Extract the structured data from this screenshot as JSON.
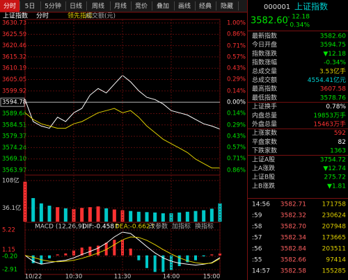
{
  "toolbar": {
    "tabs": [
      "分时",
      "5日",
      "5分钟",
      "日线",
      "周线",
      "月线",
      "竞价",
      "叠加",
      "画线",
      "经典",
      "隐藏"
    ],
    "active_index": 0
  },
  "chart_data": [
    {
      "type": "line",
      "title": "上证指数",
      "labels": [
        "分时",
        "领先指标",
        "成交额(元)"
      ],
      "x": [
        0,
        10,
        20,
        30,
        40,
        50,
        60,
        70,
        80,
        90,
        100,
        110,
        120,
        130,
        140,
        150,
        160,
        170,
        180,
        190,
        200,
        210,
        220,
        230,
        240
      ],
      "series": [
        {
          "color": "#ffffff",
          "values": [
            3596,
            3586,
            3584,
            3583,
            3588,
            3586,
            3590,
            3592,
            3598,
            3601,
            3599,
            3603,
            3607,
            3604,
            3600,
            3597,
            3596,
            3594,
            3591,
            3590,
            3589,
            3587,
            3585,
            3584,
            3582.6
          ]
        },
        {
          "color": "#e0d000",
          "values": [
            3590,
            3587,
            3585,
            3584,
            3583,
            3583,
            3585,
            3586,
            3588,
            3590,
            3591,
            3592,
            3590,
            3591,
            3588,
            3584,
            3581,
            3578,
            3576,
            3574,
            3572,
            3569,
            3567,
            3565,
            3565
          ]
        }
      ],
      "ylim": [
        3563.97,
        3630.73
      ],
      "yticks": [
        3630.73,
        3625.59,
        3620.46,
        3615.32,
        3610.19,
        3605.05,
        3599.92,
        3594.78,
        3589.64,
        3584.51,
        3579.37,
        3574.24,
        {
          "value": 3569.1,
          "label": "3569.10"
        },
        3563.97
      ],
      "y2lim": [
        -0.86,
        1.0
      ],
      "y2ticks": [
        {
          "value": 1.0,
          "label": "1.00%"
        },
        {
          "value": 0.86,
          "label": "0.86%"
        },
        {
          "value": 0.71,
          "label": "0.71%"
        },
        {
          "value": 0.57,
          "label": "0.57%"
        },
        {
          "value": 0.43,
          "label": "0.43%"
        },
        {
          "value": 0.29,
          "label": "0.29%"
        },
        {
          "value": 0.14,
          "label": "0.14%"
        },
        {
          "value": 0,
          "label": "0.00%"
        },
        {
          "value": -0.14,
          "label": "0.14%"
        },
        {
          "value": -0.29,
          "label": "0.29%"
        },
        {
          "value": -0.43,
          "label": "0.43%"
        },
        {
          "value": -0.57,
          "label": "0.57%"
        },
        {
          "value": -0.71,
          "label": "0.71%"
        },
        {
          "value": -0.86,
          "label": "0.86%"
        }
      ],
      "base": 3594.78,
      "xlim": [
        0,
        240
      ],
      "grid": true
    },
    {
      "type": "bar",
      "values": [
        105,
        62,
        48,
        42,
        38,
        35,
        33,
        36,
        38,
        40,
        35,
        32,
        30,
        28,
        26,
        25,
        24,
        22,
        22,
        24,
        26,
        28,
        30,
        34,
        48
      ],
      "ylim": [
        0,
        117
      ],
      "yticks": [
        {
          "value": 108,
          "label": "108亿"
        },
        {
          "value": 36.1,
          "label": "36.1亿"
        }
      ],
      "up_color": "#ff3232",
      "down_color": "#00c8c8"
    },
    {
      "type": "macd",
      "title": "MACD (12,26,9)",
      "items": [
        {
          "text": "DIF:-0.458↑",
          "color": "#ffffff"
        },
        {
          "text": "DEA:-0.662↑",
          "color": "#e0d000"
        }
      ],
      "buttons": [
        "改参数",
        "加指标",
        "换指标"
      ],
      "values": [
        0,
        -1.6,
        -1.8,
        -0.6,
        0.2,
        0.4,
        1.0,
        1.6,
        1.8,
        2.0,
        2.6,
        3.2,
        3.2,
        1.4,
        -1.0,
        -2.6,
        -3.4,
        -3.4,
        -3.0,
        -2.2,
        -1.4,
        -1.0,
        -0.2,
        0.2,
        0.4
      ],
      "series": [
        {
          "color": "#ffffff",
          "values": [
            0,
            -1.2,
            -1.8,
            -1.5,
            -1.2,
            -1.0,
            -0.5,
            0.2,
            0.8,
            1.5,
            2.5,
            3.8,
            4.8,
            4.5,
            3.2,
            1.8,
            0.5,
            -0.5,
            -1.2,
            -1.6,
            -1.8,
            -2.0,
            -1.8,
            -1.5,
            -0.458
          ]
        },
        {
          "color": "#e0d000",
          "values": [
            0,
            -0.4,
            -0.9,
            -1.2,
            -1.3,
            -1.2,
            -1.0,
            -0.6,
            -0.1,
            0.5,
            1.2,
            2.2,
            3.2,
            3.8,
            3.7,
            3.1,
            2.2,
            1.2,
            0.3,
            -0.5,
            -1.1,
            -1.5,
            -1.7,
            -1.6,
            -0.662
          ]
        }
      ],
      "ylim": [
        -3.77,
        5.65
      ],
      "yticks": [
        5.22,
        1.15,
        {
          "value": -0.2,
          "label": "-0.20"
        },
        -2.91
      ],
      "xlim": [
        0,
        240
      ],
      "xticks": [
        {
          "value": 0,
          "label": "10/22"
        },
        {
          "value": 60,
          "label": "10:30"
        },
        {
          "value": 120,
          "label": "11:30"
        },
        {
          "value": 180,
          "label": "14:00"
        },
        {
          "value": 240,
          "label": "15:00"
        }
      ]
    }
  ],
  "quote": {
    "code": "000001",
    "name": "上证指数",
    "price": "3582.60",
    "change": "- 12.18",
    "change_pct": "- 0.34%",
    "rows": [
      {
        "label": "最新指数",
        "value": "3582.60",
        "color": "#00e600"
      },
      {
        "label": "今日开盘",
        "value": "3594.75",
        "color": "#00e600"
      },
      {
        "label": "指数涨跌",
        "value": "▼12.18",
        "color": "#00e600"
      },
      {
        "label": "指数涨幅",
        "value": "-0.34%",
        "color": "#00e600"
      },
      {
        "label": "总成交量",
        "value": "3.53亿手",
        "color": "#e0d000"
      },
      {
        "label": "总成交额",
        "value": "4554.41亿元",
        "color": "#00d0d0"
      },
      {
        "label": "最高指数",
        "value": "3607.58",
        "color": "#ff3232"
      },
      {
        "label": "最低指数",
        "value": "3578.76",
        "color": "#00e600"
      },
      {
        "label": "上证换手",
        "value": "0.78%",
        "color": "#ffffff"
      },
      {
        "label": "内盘总量",
        "value": "19853万手",
        "color": "#00e600"
      },
      {
        "label": "外盘总量",
        "value": "15463万手",
        "color": "#ff3232"
      },
      {
        "label": "上涨家数",
        "value": "592",
        "color": "#ff3232"
      },
      {
        "label": "平盘家数",
        "value": "82",
        "color": "#ffffff"
      },
      {
        "label": "下跌家数",
        "value": "1363",
        "color": "#00e600"
      },
      {
        "label": "上证A股",
        "value": "3754.72",
        "color": "#00e600"
      },
      {
        "label": "上A涨跌",
        "value": "▼12.74",
        "color": "#00e600"
      },
      {
        "label": "上证B股",
        "value": "275.72",
        "color": "#00e600"
      },
      {
        "label": "上B涨跌",
        "value": "▼1.81",
        "color": "#00e600"
      }
    ],
    "trades": [
      [
        "14:56",
        "3582.71",
        "171758"
      ],
      [
        ":59",
        "3582.32",
        "230624"
      ],
      [
        ":58",
        "3582.70",
        "207948"
      ],
      [
        ":57",
        "3582.34",
        "173665"
      ],
      [
        ":56",
        "3582.84",
        "203511"
      ],
      [
        ":55",
        "3582.66",
        "97414"
      ],
      [
        "14:57",
        "3582.58",
        "155285"
      ]
    ]
  }
}
